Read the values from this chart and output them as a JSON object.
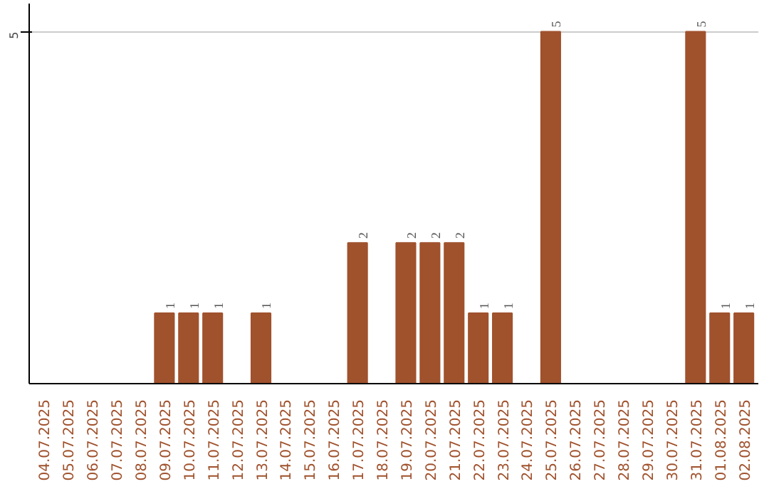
{
  "chart_data": {
    "type": "bar",
    "categories": [
      "04.07.2025",
      "05.07.2025",
      "06.07.2025",
      "07.07.2025",
      "08.07.2025",
      "09.07.2025",
      "10.07.2025",
      "11.07.2025",
      "12.07.2025",
      "13.07.2025",
      "14.07.2025",
      "15.07.2025",
      "16.07.2025",
      "17.07.2025",
      "18.07.2025",
      "19.07.2025",
      "20.07.2025",
      "21.07.2025",
      "22.07.2025",
      "23.07.2025",
      "24.07.2025",
      "25.07.2025",
      "26.07.2025",
      "27.07.2025",
      "28.07.2025",
      "29.07.2025",
      "30.07.2025",
      "31.07.2025",
      "01.08.2025",
      "02.08.2025"
    ],
    "values": [
      0,
      0,
      0,
      0,
      0,
      1,
      1,
      1,
      0,
      1,
      0,
      0,
      0,
      2,
      0,
      2,
      2,
      2,
      1,
      1,
      0,
      5,
      0,
      0,
      0,
      0,
      0,
      5,
      1,
      1
    ],
    "value_labels": [
      null,
      null,
      null,
      null,
      null,
      "1",
      "1",
      "1",
      null,
      "1",
      null,
      null,
      null,
      "2",
      null,
      "2",
      "2",
      "2",
      "1",
      "1",
      null,
      "5",
      null,
      null,
      null,
      null,
      null,
      "5",
      "1",
      "1"
    ],
    "color": "#a0522d",
    "ylim": [
      0,
      5.4
    ],
    "yticks": [
      5
    ],
    "grid": "y"
  }
}
